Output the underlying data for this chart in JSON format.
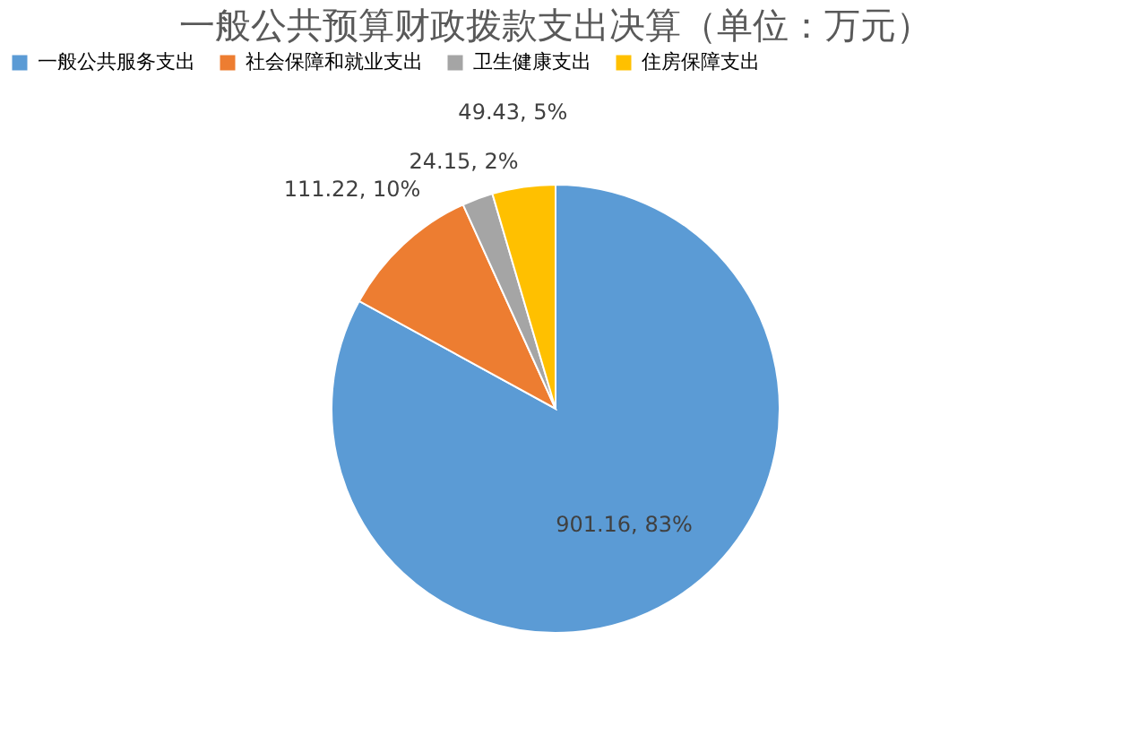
{
  "chart_data": {
    "type": "pie",
    "title": "一般公共预算财政拨款支出决算（单位：万元）",
    "categories": [
      "一般公共服务支出",
      "社会保障和就业支出",
      "卫生健康支出",
      "住房保障支出"
    ],
    "values": [
      901.16,
      111.22,
      24.15,
      49.43
    ],
    "colors": [
      "#5b9bd5",
      "#ed7d31",
      "#a5a5a5",
      "#ffc000"
    ],
    "value_labels": [
      "901.16, 83%",
      "111.22, 10%",
      "24.15, 2%",
      "49.43, 5%"
    ],
    "legend": "top"
  }
}
